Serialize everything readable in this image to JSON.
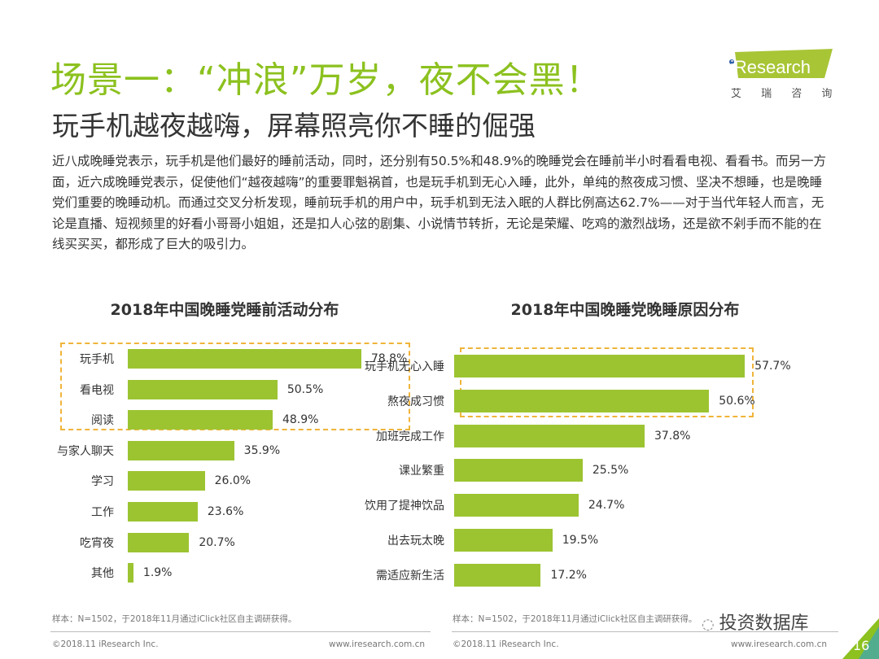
{
  "header": {
    "title": "场景一：“冲浪”万岁，夜不会黑！",
    "subtitle": "玩手机越夜越嗨，屏幕照亮你不睡的倔强",
    "body": "近八成晚睡党表示，玩手机是他们最好的睡前活动，同时，还分别有50.5%和48.9%的晚睡党会在睡前半小时看看电视、看看书。而另一方面，近六成晚睡党表示，促使他们“越夜越嗨”的重要罪魁祸首，也是玩手机到无心入睡，此外，单纯的熬夜成习惯、坚决不想睡，也是晚睡党们重要的晚睡动机。而通过交叉分析发现，睡前玩手机的用户中，玩手机到无法入眠的人群比例高达62.7%——对于当代年轻人而言，无论是直播、短视频里的好看小哥哥小姐姐，还是扣人心弦的剧集、小说情节转折，无论是荣耀、吃鸡的激烈战场，还是欲不剁手而不能的在线买买买，都形成了巨大的吸引力。"
  },
  "logo": {
    "text": "iResearch",
    "sub": "艾 瑞 咨 询",
    "color": "#a8c536"
  },
  "chart_data": [
    {
      "type": "bar",
      "orientation": "horizontal",
      "title": "2018年中国晚睡党睡前活动分布",
      "unit": "%",
      "categories": [
        "玩手机",
        "看电视",
        "阅读",
        "与家人聊天",
        "学习",
        "工作",
        "吃宵夜",
        "其他"
      ],
      "values": [
        78.8,
        50.5,
        48.9,
        35.9,
        26.0,
        23.6,
        20.7,
        1.9
      ],
      "labels": [
        "78.8%",
        "50.5%",
        "48.9%",
        "35.9%",
        "26.0%",
        "23.6%",
        "20.7%",
        "1.9%"
      ],
      "highlighted": [
        "玩手机",
        "看电视",
        "阅读"
      ],
      "color": "#9cc431"
    },
    {
      "type": "bar",
      "orientation": "horizontal",
      "title": "2018年中国晚睡党晚睡原因分布",
      "unit": "%",
      "categories": [
        "玩手机无心入睡",
        "熬夜成习惯",
        "加班完成工作",
        "课业繁重",
        "饮用了提神饮品",
        "出去玩太晚",
        "需适应新生活"
      ],
      "values": [
        57.7,
        50.6,
        37.8,
        25.5,
        24.7,
        19.5,
        17.2
      ],
      "labels": [
        "57.7%",
        "50.6%",
        "37.8%",
        "25.5%",
        "24.7%",
        "19.5%",
        "17.2%"
      ],
      "highlighted": [
        "玩手机无心入睡",
        "熬夜成习惯"
      ],
      "color": "#9cc431"
    }
  ],
  "footer": {
    "source": "样本：N=1502，于2018年11月通过iClick社区自主调研获得。",
    "copyright": "©2018.11 iResearch Inc.",
    "url": "www.iresearch.com.cn",
    "page": "16",
    "watermark": "投资数据库"
  }
}
